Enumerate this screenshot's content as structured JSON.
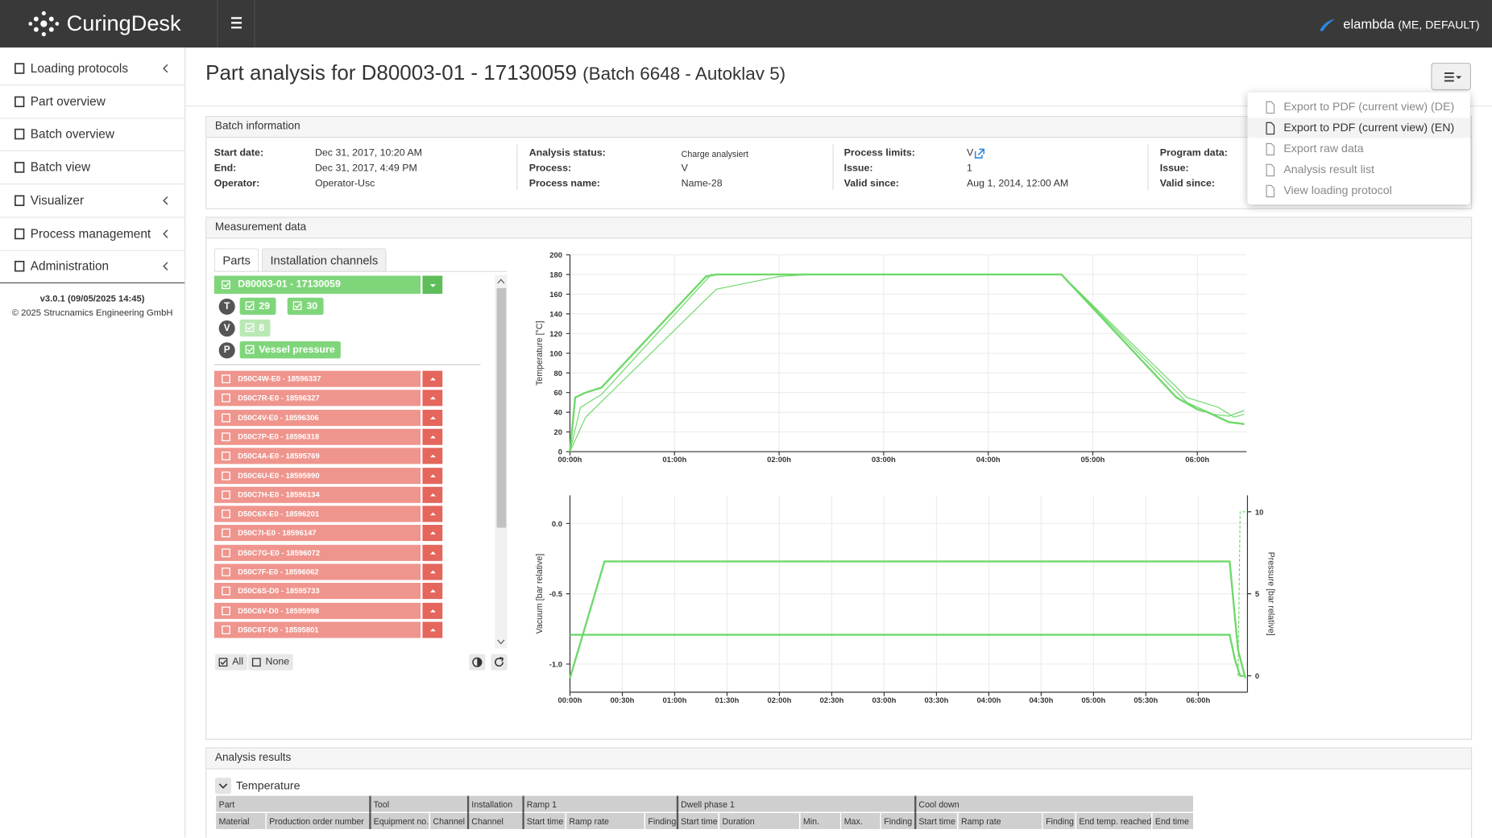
{
  "header": {
    "brand": "CuringDesk",
    "user": "elambda",
    "user_role": "(ME, DEFAULT)"
  },
  "sidebar": {
    "items": [
      {
        "label": "Loading protocols",
        "submenu": true
      },
      {
        "label": "Part overview",
        "submenu": false
      },
      {
        "label": "Batch overview",
        "submenu": false
      },
      {
        "label": "Batch view",
        "submenu": false
      },
      {
        "label": "Visualizer",
        "submenu": true
      },
      {
        "label": "Process management",
        "submenu": true
      },
      {
        "label": "Administration",
        "submenu": true
      }
    ],
    "version": "v3.0.1 (09/05/2025 14:45)",
    "copyright": "© 2025 Strucnamics Engineering GmbH"
  },
  "page": {
    "title": "Part analysis for D80003-01 - 17130059",
    "subtitle": "(Batch 6648 - Autoklav 5)"
  },
  "menu": {
    "items": [
      "Export to PDF (current view) (DE)",
      "Export to PDF (current view) (EN)",
      "Export raw data",
      "Analysis result list",
      "View loading protocol"
    ],
    "active": 1
  },
  "batch_info": {
    "title": "Batch information",
    "columns": [
      [
        {
          "label": "Start date:",
          "value": "Dec 31, 2017, 10:20 AM"
        },
        {
          "label": "End:",
          "value": "Dec 31, 2017, 4:49 PM"
        },
        {
          "label": "Operator:",
          "value": "Operator-Usc"
        }
      ],
      [
        {
          "label": "Analysis status:",
          "value": "Charge analysiert"
        },
        {
          "label": "Process:",
          "value": "V"
        },
        {
          "label": "Process name:",
          "value": "Name-28"
        }
      ],
      [
        {
          "label": "Process limits:",
          "value": "V"
        },
        {
          "label": "Issue:",
          "value": "1"
        },
        {
          "label": "Valid since:",
          "value": "Aug 1, 2014, 12:00 AM"
        }
      ],
      [
        {
          "label": "Program data:"
        },
        {
          "label": "Issue:"
        },
        {
          "label": "Valid since:"
        }
      ]
    ]
  },
  "measurement": {
    "title": "Measurement data",
    "tabs": [
      "Parts",
      "Installation channels"
    ],
    "selected_part": "D80003-01 - 17130059",
    "channels": [
      {
        "badge": "T",
        "items": [
          "29",
          "30"
        ]
      },
      {
        "badge": "V",
        "items": [
          "8"
        ]
      },
      {
        "badge": "P",
        "items": [
          "Vessel pressure"
        ]
      }
    ],
    "other_parts": [
      "D50C4W-E0 - 18596337",
      "D50C7R-E0 - 18596327",
      "D50C4V-E0 - 18596306",
      "D50C7P-E0 - 18596318",
      "D50C4A-E0 - 18595769",
      "D50C6U-E0 - 18595990",
      "D50C7H-E0 - 18596134",
      "D50C6X-E0 - 18596201",
      "D50C7I-E0 - 18596147",
      "D50C7G-E0 - 18596072",
      "D50C7F-E0 - 18596062",
      "D50C6S-D0 - 18595733",
      "D50C6V-D0 - 18595998",
      "D50C6T-D0 - 18595801"
    ],
    "buttons": [
      "All",
      "None"
    ]
  },
  "charts": [
    {
      "type": "line",
      "y_label": "Temperature [°C]",
      "grid": true,
      "xlim": [
        0,
        6.47
      ],
      "xticks": [
        {
          "value": 0,
          "label": "00:00h"
        },
        {
          "value": 1,
          "label": "01:00h"
        },
        {
          "value": 2,
          "label": "02:00h"
        },
        {
          "value": 3,
          "label": "03:00h"
        },
        {
          "value": 4,
          "label": "04:00h"
        },
        {
          "value": 5,
          "label": "05:00h"
        },
        {
          "value": 6,
          "label": "06:00h"
        }
      ],
      "ylim": [
        0,
        200
      ],
      "yticks": [
        0,
        20,
        40,
        60,
        80,
        100,
        120,
        140,
        160,
        180,
        200
      ],
      "series": [
        {
          "color": "#6fd86a",
          "width": 2,
          "x": [
            0,
            0.05,
            0.15,
            0.3,
            1.3,
            1.4,
            4.7,
            5.8,
            6.0,
            6.1,
            6.3,
            6.45
          ],
          "y": [
            0,
            55,
            60,
            65,
            178,
            180,
            180,
            55,
            43,
            40,
            30,
            28
          ]
        },
        {
          "color": "#6fd86a",
          "width": 1,
          "x": [
            0,
            0.1,
            0.3,
            1.35,
            4.7,
            5.9,
            6.15,
            6.3,
            6.45
          ],
          "y": [
            0,
            45,
            58,
            180,
            180,
            50,
            38,
            36,
            42
          ]
        },
        {
          "color": "#6fd86a",
          "width": 1,
          "x": [
            0,
            0.15,
            1.4,
            2.0,
            2.3,
            4.7,
            5.9,
            6.2,
            6.35,
            6.45
          ],
          "y": [
            0,
            35,
            165,
            178,
            180,
            180,
            55,
            45,
            35,
            38
          ]
        }
      ]
    },
    {
      "type": "line",
      "y_label": "Vacuum [bar relative]",
      "y2_label": "Pressure [bar relative]",
      "grid": true,
      "xlim": [
        0,
        6.47
      ],
      "xticks": [
        {
          "value": 0,
          "label": "00:00h"
        },
        {
          "value": 0.5,
          "label": "00:30h"
        },
        {
          "value": 1,
          "label": "01:00h"
        },
        {
          "value": 1.5,
          "label": "01:30h"
        },
        {
          "value": 2,
          "label": "02:00h"
        },
        {
          "value": 2.5,
          "label": "02:30h"
        },
        {
          "value": 3,
          "label": "03:00h"
        },
        {
          "value": 3.5,
          "label": "03:30h"
        },
        {
          "value": 4,
          "label": "04:00h"
        },
        {
          "value": 4.5,
          "label": "04:30h"
        },
        {
          "value": 5,
          "label": "05:00h"
        },
        {
          "value": 5.5,
          "label": "05:30h"
        },
        {
          "value": 6,
          "label": "06:00h"
        }
      ],
      "ylim": [
        -1.2,
        0.2
      ],
      "yticks": [
        {
          "value": 0,
          "label": "0.0"
        },
        -0.5,
        {
          "value": -1,
          "label": "-1.0"
        }
      ],
      "y2lim": [
        -1,
        11
      ],
      "y2ticks": [
        0,
        5,
        10
      ],
      "series": [
        {
          "color": "#6fd86a",
          "width": 2,
          "x": [
            0,
            0.33,
            6.3,
            6.38,
            6.45
          ],
          "y": [
            -1.1,
            -0.27,
            -0.27,
            -0.9,
            -1.1
          ]
        },
        {
          "color": "#6fd86a",
          "width": 2,
          "axis": "y2",
          "x": [
            0,
            6.3,
            6.35,
            6.4,
            6.45
          ],
          "y": [
            2.5,
            2.5,
            1,
            0,
            0
          ]
        },
        {
          "color": "#6fd86a",
          "width": 1,
          "dashed": true,
          "axis": "y2",
          "x": [
            6.38,
            6.4,
            6.45
          ],
          "y": [
            0,
            10,
            10
          ]
        }
      ]
    }
  ],
  "analysis": {
    "title": "Analysis results",
    "section": "Temperature",
    "groups": [
      {
        "label": "Part",
        "span": 2
      },
      {
        "label": "Tool",
        "span": 2
      },
      {
        "label": "Installation",
        "span": 1
      },
      {
        "label": "Ramp 1",
        "span": 3
      },
      {
        "label": "Dwell phase 1",
        "span": 5
      },
      {
        "label": "Cool down",
        "span": 5
      }
    ],
    "columns": [
      "Material",
      "Production order number",
      "Equipment no.",
      "Channel",
      "Channel",
      "Start time",
      "Ramp rate",
      "Finding",
      "Start time",
      "Duration",
      "Min.",
      "Max.",
      "Finding",
      "Start time",
      "Ramp rate",
      "Finding",
      "End temp. reached",
      "End time"
    ]
  }
}
